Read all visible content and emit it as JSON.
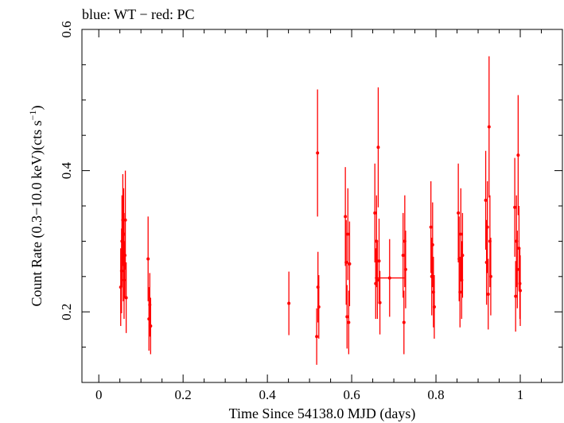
{
  "chart_data": {
    "type": "scatter",
    "title": "blue: WT − red: PC",
    "xlabel": "Time Since 54138.0 MJD (days)",
    "ylabel_main": "Count Rate (0.3−10.0 keV)(cts s",
    "ylabel_sup": "−1",
    "ylabel_close": ")",
    "xlim": [
      -0.04,
      1.1
    ],
    "ylim": [
      0.1,
      0.6
    ],
    "xticks": [
      {
        "value": 0,
        "label": "0"
      },
      {
        "value": 0.2,
        "label": "0.2"
      },
      {
        "value": 0.4,
        "label": "0.4"
      },
      {
        "value": 0.6,
        "label": "0.6"
      },
      {
        "value": 0.8,
        "label": "0.8"
      },
      {
        "value": 1.0,
        "label": "1"
      }
    ],
    "yticks": [
      {
        "value": 0.2,
        "label": "0.2"
      },
      {
        "value": 0.4,
        "label": "0.4"
      },
      {
        "value": 0.6,
        "label": "0.6"
      }
    ],
    "series": [
      {
        "mode": "PC",
        "color": "#ff0000",
        "points": [
          {
            "x": 0.052,
            "y": 0.235,
            "yerr": 0.055
          },
          {
            "x": 0.054,
            "y": 0.258,
            "yerr": 0.06
          },
          {
            "x": 0.055,
            "y": 0.3,
            "yerr": 0.065
          },
          {
            "x": 0.057,
            "y": 0.33,
            "yerr": 0.065
          },
          {
            "x": 0.058,
            "y": 0.275,
            "yerr": 0.06
          },
          {
            "x": 0.059,
            "y": 0.31,
            "yerr": 0.065
          },
          {
            "x": 0.06,
            "y": 0.245,
            "yerr": 0.055
          },
          {
            "x": 0.062,
            "y": 0.28,
            "yerr": 0.06
          },
          {
            "x": 0.063,
            "y": 0.33,
            "yerr": 0.07
          },
          {
            "x": 0.065,
            "y": 0.22,
            "yerr": 0.05
          },
          {
            "x": 0.117,
            "y": 0.275,
            "yerr": 0.06
          },
          {
            "x": 0.119,
            "y": 0.19,
            "yerr": 0.045
          },
          {
            "x": 0.121,
            "y": 0.21,
            "yerr": 0.045
          },
          {
            "x": 0.123,
            "y": 0.18,
            "yerr": 0.04
          },
          {
            "x": 0.451,
            "y": 0.212,
            "yerr": 0.045
          },
          {
            "x": 0.517,
            "y": 0.165,
            "yerr": 0.04
          },
          {
            "x": 0.519,
            "y": 0.425,
            "yerr": 0.09
          },
          {
            "x": 0.52,
            "y": 0.235,
            "yerr": 0.05
          },
          {
            "x": 0.522,
            "y": 0.207,
            "yerr": 0.045
          },
          {
            "x": 0.585,
            "y": 0.335,
            "yerr": 0.07
          },
          {
            "x": 0.587,
            "y": 0.27,
            "yerr": 0.06
          },
          {
            "x": 0.589,
            "y": 0.193,
            "yerr": 0.045
          },
          {
            "x": 0.591,
            "y": 0.31,
            "yerr": 0.065
          },
          {
            "x": 0.593,
            "y": 0.185,
            "yerr": 0.045
          },
          {
            "x": 0.595,
            "y": 0.268,
            "yerr": 0.06
          },
          {
            "x": 0.655,
            "y": 0.34,
            "yerr": 0.07
          },
          {
            "x": 0.657,
            "y": 0.24,
            "yerr": 0.05
          },
          {
            "x": 0.659,
            "y": 0.3,
            "yerr": 0.065
          },
          {
            "x": 0.661,
            "y": 0.245,
            "yerr": 0.055
          },
          {
            "x": 0.663,
            "y": 0.433,
            "yerr": 0.085
          },
          {
            "x": 0.665,
            "y": 0.272,
            "yerr": 0.06
          },
          {
            "x": 0.667,
            "y": 0.213,
            "yerr": 0.045
          },
          {
            "x": 0.69,
            "y": 0.248,
            "yerr": 0.055,
            "xerr": 0.035
          },
          {
            "x": 0.722,
            "y": 0.28,
            "yerr": 0.06
          },
          {
            "x": 0.724,
            "y": 0.185,
            "yerr": 0.045
          },
          {
            "x": 0.726,
            "y": 0.3,
            "yerr": 0.065
          },
          {
            "x": 0.728,
            "y": 0.26,
            "yerr": 0.055
          },
          {
            "x": 0.788,
            "y": 0.32,
            "yerr": 0.065
          },
          {
            "x": 0.79,
            "y": 0.25,
            "yerr": 0.055
          },
          {
            "x": 0.792,
            "y": 0.295,
            "yerr": 0.06
          },
          {
            "x": 0.794,
            "y": 0.228,
            "yerr": 0.05
          },
          {
            "x": 0.796,
            "y": 0.207,
            "yerr": 0.045
          },
          {
            "x": 0.853,
            "y": 0.34,
            "yerr": 0.07
          },
          {
            "x": 0.855,
            "y": 0.275,
            "yerr": 0.06
          },
          {
            "x": 0.857,
            "y": 0.228,
            "yerr": 0.05
          },
          {
            "x": 0.859,
            "y": 0.31,
            "yerr": 0.065
          },
          {
            "x": 0.861,
            "y": 0.245,
            "yerr": 0.055
          },
          {
            "x": 0.863,
            "y": 0.28,
            "yerr": 0.06
          },
          {
            "x": 0.918,
            "y": 0.358,
            "yerr": 0.07
          },
          {
            "x": 0.92,
            "y": 0.27,
            "yerr": 0.06
          },
          {
            "x": 0.922,
            "y": 0.32,
            "yerr": 0.065
          },
          {
            "x": 0.924,
            "y": 0.225,
            "yerr": 0.05
          },
          {
            "x": 0.926,
            "y": 0.462,
            "yerr": 0.1
          },
          {
            "x": 0.928,
            "y": 0.3,
            "yerr": 0.065
          },
          {
            "x": 0.93,
            "y": 0.25,
            "yerr": 0.055
          },
          {
            "x": 0.987,
            "y": 0.348,
            "yerr": 0.07
          },
          {
            "x": 0.989,
            "y": 0.222,
            "yerr": 0.05
          },
          {
            "x": 0.991,
            "y": 0.3,
            "yerr": 0.065
          },
          {
            "x": 0.993,
            "y": 0.26,
            "yerr": 0.055
          },
          {
            "x": 0.995,
            "y": 0.422,
            "yerr": 0.085
          },
          {
            "x": 0.997,
            "y": 0.29,
            "yerr": 0.06
          },
          {
            "x": 0.999,
            "y": 0.24,
            "yerr": 0.05
          },
          {
            "x": 1.0,
            "y": 0.23,
            "yerr": 0.05
          }
        ]
      }
    ]
  }
}
